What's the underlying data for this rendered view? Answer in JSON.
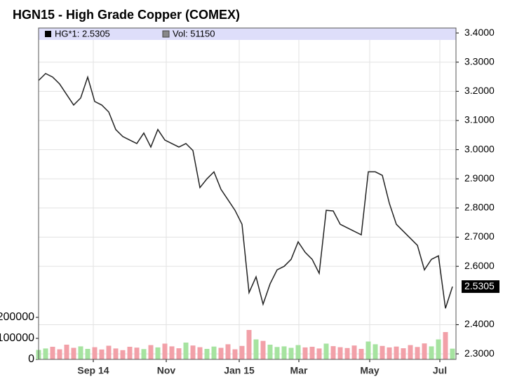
{
  "chart_data": {
    "type": "line",
    "title": "HGN15 - High Grade Copper (COMEX)",
    "xlim": [
      0,
      59.5
    ],
    "xticks": [
      {
        "value": 7.8,
        "label": "Sep 14"
      },
      {
        "value": 18.2,
        "label": "Nov"
      },
      {
        "value": 28.6,
        "label": "Jan 15"
      },
      {
        "value": 37.1,
        "label": "Mar"
      },
      {
        "value": 47.2,
        "label": "May"
      },
      {
        "value": 57.2,
        "label": "Jul"
      }
    ],
    "ylim": [
      2.281,
      3.417
    ],
    "yticks": [
      {
        "value": 2.3,
        "label": "2.3000"
      },
      {
        "value": 2.4,
        "label": "2.4000"
      },
      {
        "value": 2.6,
        "label": "2.6000"
      },
      {
        "value": 2.7,
        "label": "2.7000"
      },
      {
        "value": 2.8,
        "label": "2.8000"
      },
      {
        "value": 2.9,
        "label": "2.9000"
      },
      {
        "value": 3.0,
        "label": "3.0000"
      },
      {
        "value": 3.1,
        "label": "3.1000"
      },
      {
        "value": 3.2,
        "label": "3.2000"
      },
      {
        "value": 3.3,
        "label": "3.3000"
      },
      {
        "value": 3.4,
        "label": "3.4000"
      }
    ],
    "y2lim": [
      0,
      1577000
    ],
    "y2ticks": [
      0,
      100000,
      200000
    ],
    "grid": true,
    "series": [
      {
        "name": "HG*1: 2.5305",
        "color": "#222222",
        "last_value_label": "2.5305",
        "values": [
          3.237,
          3.261,
          3.249,
          3.225,
          3.189,
          3.153,
          3.177,
          3.249,
          3.165,
          3.153,
          3.129,
          3.069,
          3.045,
          3.033,
          3.021,
          3.057,
          3.009,
          3.069,
          3.033,
          3.021,
          3.009,
          3.021,
          2.997,
          2.87,
          2.9,
          2.924,
          2.864,
          2.828,
          2.792,
          2.744,
          2.51,
          2.564,
          2.47,
          2.54,
          2.588,
          2.6,
          2.624,
          2.684,
          2.648,
          2.624,
          2.576,
          2.792,
          2.79,
          2.744,
          2.732,
          2.72,
          2.708,
          2.924,
          2.924,
          2.912,
          2.816,
          2.744,
          2.72,
          2.696,
          2.672,
          2.588,
          2.624,
          2.636,
          2.456,
          2.5305
        ]
      },
      {
        "name": "Vol: 51150",
        "type": "bar",
        "axis": "y2",
        "color": "#888888",
        "up_color": "#a6e3a0",
        "down_color": "#f2a0a8",
        "values": [
          45000,
          52000,
          60000,
          48000,
          70000,
          55000,
          62000,
          50000,
          58000,
          47000,
          65000,
          52000,
          44000,
          60000,
          56000,
          49000,
          68000,
          57000,
          75000,
          62000,
          53000,
          80000,
          66000,
          58000,
          50000,
          61000,
          55000,
          72000,
          48000,
          64000,
          140000,
          95000,
          88000,
          70000,
          59000,
          62000,
          55000,
          68000,
          57000,
          60000,
          52000,
          75000,
          63000,
          58000,
          54000,
          66000,
          50000,
          85000,
          72000,
          64000,
          57000,
          61000,
          53000,
          68000,
          59000,
          76000,
          62000,
          95000,
          130000,
          51150
        ]
      }
    ]
  }
}
